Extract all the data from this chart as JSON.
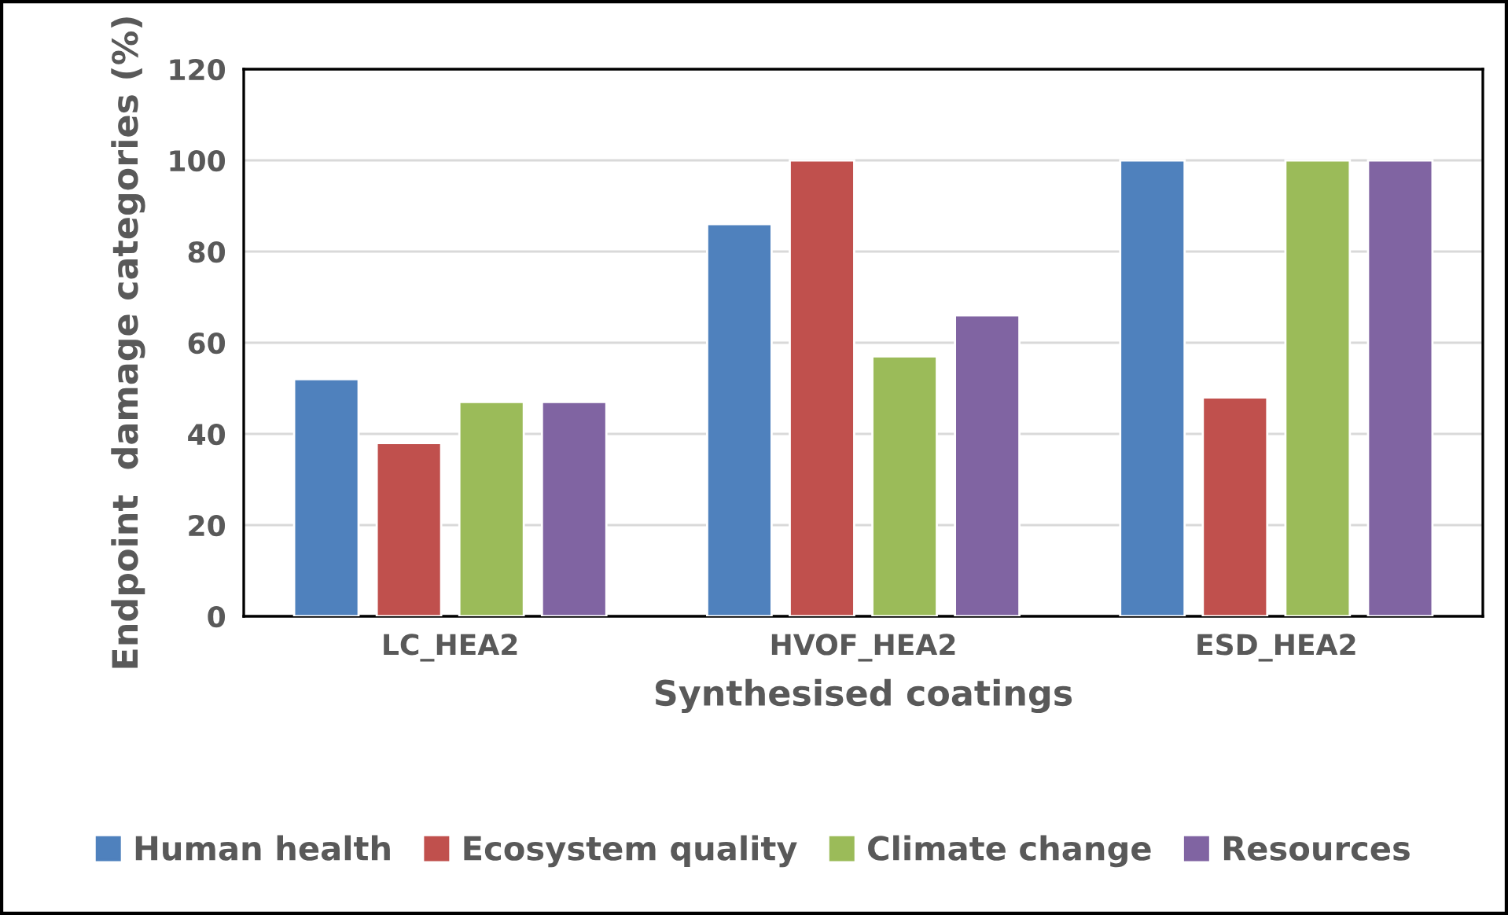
{
  "chart_data": {
    "type": "bar",
    "xlabel": "Synthesised coatings",
    "ylabel": "Endpoint  damage categories (%)",
    "categories": [
      "LC_HEA2",
      "HVOF_HEA2",
      "ESD_HEA2"
    ],
    "series": [
      {
        "name": "Human health",
        "color": "#4f81bd",
        "values": [
          52,
          86,
          100
        ]
      },
      {
        "name": "Ecosystem quality",
        "color": "#c0504d",
        "values": [
          38,
          100,
          48
        ]
      },
      {
        "name": "Climate change",
        "color": "#9bbb59",
        "values": [
          47,
          57,
          100
        ]
      },
      {
        "name": "Resources",
        "color": "#8064a2",
        "values": [
          47,
          66,
          100
        ]
      }
    ],
    "ylim": [
      0,
      120
    ],
    "yticks": [
      0,
      20,
      40,
      60,
      80,
      100,
      120
    ],
    "grid": "y",
    "legend": "bottom"
  }
}
